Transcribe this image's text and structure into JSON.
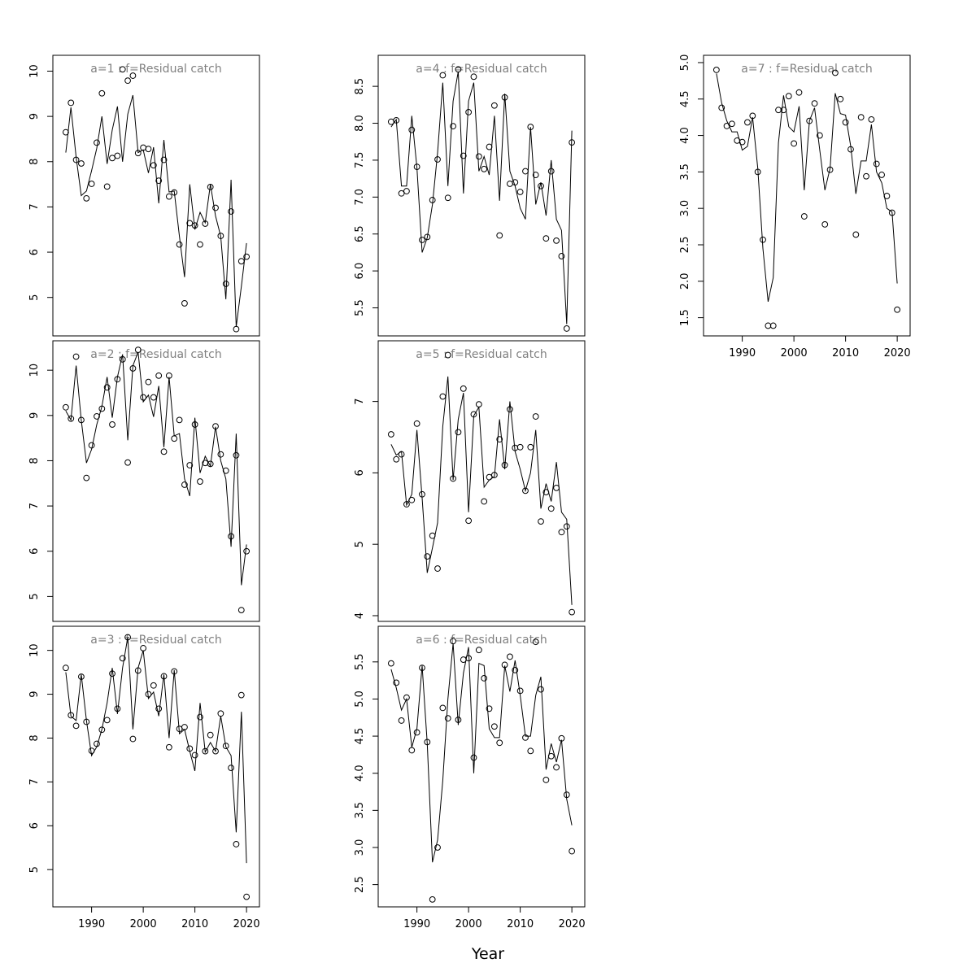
{
  "xlabel": "Year",
  "chart_data": [
    {
      "type": "line",
      "panel": 1,
      "title": "a=1  :  f=Residual catch",
      "xlim": [
        1982.5,
        2022.5
      ],
      "ylim": [
        4.15,
        10.35
      ],
      "yticks": [
        "5",
        "6",
        "7",
        "8",
        "9",
        "10"
      ],
      "xticks": [],
      "x": [
        1985,
        1986,
        1987,
        1988,
        1989,
        1990,
        1991,
        1992,
        1993,
        1994,
        1995,
        1996,
        1997,
        1998,
        1999,
        2000,
        2001,
        2002,
        2003,
        2004,
        2005,
        2006,
        2007,
        2008,
        2009,
        2010,
        2011,
        2012,
        2013,
        2014,
        2015,
        2016,
        2017,
        2018,
        2019,
        2020
      ],
      "series": [
        {
          "name": "",
          "role": "observed",
          "values": [
            8.65,
            9.3,
            8.04,
            7.96,
            7.19,
            7.51,
            8.42,
            9.51,
            7.45,
            8.08,
            8.13,
            10.04,
            9.79,
            9.9,
            8.19,
            8.31,
            8.28,
            7.92,
            7.58,
            8.04,
            7.23,
            7.32,
            6.17,
            4.87,
            6.64,
            6.59,
            6.17,
            6.63,
            7.44,
            6.98,
            6.36,
            5.3,
            6.9,
            4.3,
            5.8,
            5.9
          ]
        },
        {
          "name": "",
          "role": "fitted",
          "values": [
            8.2,
            9.2,
            8.1,
            7.25,
            7.35,
            7.8,
            8.3,
            9.0,
            7.95,
            8.7,
            9.22,
            8.0,
            9.05,
            9.47,
            8.2,
            8.26,
            7.75,
            8.32,
            7.08,
            8.48,
            7.33,
            7.35,
            6.35,
            5.45,
            7.5,
            6.5,
            6.88,
            6.65,
            7.5,
            6.8,
            6.35,
            4.96,
            7.6,
            4.35,
            5.25,
            6.2
          ]
        }
      ]
    },
    {
      "type": "line",
      "panel": 2,
      "title": "a=2  :  f=Residual catch",
      "xlim": [
        1982.5,
        2022.5
      ],
      "ylim": [
        4.45,
        10.65
      ],
      "yticks": [
        "5",
        "6",
        "7",
        "8",
        "9",
        "10"
      ],
      "xticks": [],
      "x": [
        1985,
        1986,
        1987,
        1988,
        1989,
        1990,
        1991,
        1992,
        1993,
        1994,
        1995,
        1996,
        1997,
        1998,
        1999,
        2000,
        2001,
        2002,
        2003,
        2004,
        2005,
        2006,
        2007,
        2008,
        2009,
        2010,
        2011,
        2012,
        2013,
        2014,
        2015,
        2016,
        2017,
        2018,
        2019,
        2020
      ],
      "series": [
        {
          "name": "",
          "role": "observed",
          "values": [
            9.18,
            8.93,
            10.3,
            8.9,
            7.62,
            8.34,
            8.98,
            9.15,
            9.62,
            8.8,
            9.8,
            10.24,
            7.96,
            10.04,
            10.45,
            9.4,
            9.74,
            9.4,
            9.88,
            8.2,
            9.88,
            8.49,
            8.9,
            7.47,
            7.9,
            8.8,
            7.54,
            7.95,
            7.93,
            8.76,
            8.14,
            7.78,
            6.33,
            8.12,
            4.7,
            6.0
          ]
        },
        {
          "name": "",
          "role": "fitted",
          "values": [
            9.1,
            8.9,
            10.1,
            8.9,
            7.95,
            8.25,
            8.8,
            9.2,
            9.85,
            8.95,
            9.85,
            10.35,
            8.45,
            10.1,
            10.4,
            9.3,
            9.45,
            8.97,
            9.65,
            8.3,
            9.85,
            8.55,
            8.6,
            7.6,
            7.22,
            8.95,
            7.73,
            8.1,
            7.88,
            8.75,
            8.0,
            7.6,
            6.1,
            8.6,
            5.25,
            6.15
          ]
        }
      ]
    },
    {
      "type": "line",
      "panel": 3,
      "title": "a=3  :  f=Residual catch",
      "xlim": [
        1982.5,
        2022.5
      ],
      "ylim": [
        4.15,
        10.55
      ],
      "yticks": [
        "5",
        "6",
        "7",
        "8",
        "9",
        "10"
      ],
      "xticks": [
        "1990",
        "2000",
        "2010",
        "2020"
      ],
      "x": [
        1985,
        1986,
        1987,
        1988,
        1989,
        1990,
        1991,
        1992,
        1993,
        1994,
        1995,
        1996,
        1997,
        1998,
        1999,
        2000,
        2001,
        2002,
        2003,
        2004,
        2005,
        2006,
        2007,
        2008,
        2009,
        2010,
        2011,
        2012,
        2013,
        2014,
        2015,
        2016,
        2017,
        2018,
        2019,
        2020
      ],
      "series": [
        {
          "name": "",
          "role": "observed",
          "values": [
            9.6,
            8.52,
            8.28,
            9.4,
            8.37,
            7.71,
            7.87,
            8.19,
            8.41,
            9.47,
            8.67,
            9.82,
            10.3,
            7.98,
            9.54,
            10.05,
            9.0,
            9.2,
            8.67,
            9.41,
            7.79,
            9.52,
            8.21,
            8.25,
            7.76,
            7.61,
            8.48,
            7.7,
            8.07,
            7.7,
            8.56,
            7.82,
            7.32,
            5.58,
            8.98,
            4.38
          ]
        },
        {
          "name": "",
          "role": "fitted",
          "values": [
            9.5,
            8.5,
            8.4,
            9.45,
            8.4,
            7.6,
            7.8,
            8.2,
            8.8,
            9.6,
            8.55,
            9.6,
            10.3,
            8.2,
            9.6,
            10.0,
            8.9,
            9.05,
            8.5,
            9.45,
            8.0,
            9.55,
            8.1,
            8.2,
            7.7,
            7.25,
            8.8,
            7.68,
            7.9,
            7.7,
            8.5,
            7.8,
            7.6,
            5.85,
            8.6,
            5.15
          ]
        }
      ]
    },
    {
      "type": "line",
      "panel": 4,
      "title": "a=4  :  f=Residual catch",
      "xlim": [
        1982.5,
        2022.5
      ],
      "ylim": [
        5.12,
        8.92
      ],
      "yticks": [
        "5.5",
        "6.0",
        "6.5",
        "7.0",
        "7.5",
        "8.0",
        "8.5"
      ],
      "xticks": [],
      "x": [
        1985,
        1986,
        1987,
        1988,
        1989,
        1990,
        1991,
        1992,
        1993,
        1994,
        1995,
        1996,
        1997,
        1998,
        1999,
        2000,
        2001,
        2002,
        2003,
        2004,
        2005,
        2006,
        2007,
        2008,
        2009,
        2010,
        2011,
        2012,
        2013,
        2014,
        2015,
        2016,
        2017,
        2018,
        2019,
        2020
      ],
      "series": [
        {
          "name": "",
          "role": "observed",
          "values": [
            8.02,
            8.04,
            7.05,
            7.08,
            7.91,
            7.41,
            6.42,
            6.46,
            6.96,
            7.51,
            8.65,
            6.99,
            7.96,
            8.73,
            7.56,
            8.15,
            8.63,
            7.55,
            7.38,
            7.68,
            8.24,
            6.48,
            8.35,
            7.18,
            7.2,
            7.07,
            7.35,
            7.95,
            7.3,
            7.15,
            6.44,
            7.35,
            6.41,
            6.2,
            5.22,
            7.74
          ]
        },
        {
          "name": "",
          "role": "fitted",
          "values": [
            7.95,
            8.05,
            7.15,
            7.15,
            8.1,
            7.4,
            6.25,
            6.45,
            6.9,
            7.6,
            8.55,
            7.15,
            8.3,
            8.7,
            7.05,
            8.3,
            8.55,
            7.35,
            7.55,
            7.3,
            8.1,
            6.95,
            8.4,
            7.35,
            7.15,
            6.85,
            6.7,
            7.95,
            6.9,
            7.2,
            6.75,
            7.5,
            6.7,
            6.55,
            5.28,
            7.9
          ]
        }
      ]
    },
    {
      "type": "line",
      "panel": 5,
      "title": "a=5  :  f=Residual catch",
      "xlim": [
        1982.5,
        2022.5
      ],
      "ylim": [
        3.92,
        7.85
      ],
      "yticks": [
        "4",
        "5",
        "6",
        "7"
      ],
      "xticks": [],
      "x": [
        1985,
        1986,
        1987,
        1988,
        1989,
        1990,
        1991,
        1992,
        1993,
        1994,
        1995,
        1996,
        1997,
        1998,
        1999,
        2000,
        2001,
        2002,
        2003,
        2004,
        2005,
        2006,
        2007,
        2008,
        2009,
        2010,
        2011,
        2012,
        2013,
        2014,
        2015,
        2016,
        2017,
        2018,
        2019,
        2020
      ],
      "series": [
        {
          "name": "",
          "role": "observed",
          "values": [
            6.54,
            6.19,
            6.26,
            5.56,
            5.62,
            6.69,
            5.7,
            4.83,
            5.12,
            4.66,
            7.07,
            7.65,
            5.92,
            6.57,
            7.18,
            5.33,
            6.82,
            6.96,
            5.6,
            5.94,
            5.97,
            6.47,
            6.11,
            6.89,
            6.35,
            6.36,
            5.75,
            6.36,
            6.79,
            5.32,
            5.73,
            5.5,
            5.79,
            5.17,
            5.25,
            4.05
          ]
        },
        {
          "name": "",
          "role": "fitted",
          "values": [
            6.4,
            6.25,
            6.3,
            5.55,
            5.7,
            6.6,
            5.65,
            4.6,
            4.95,
            5.3,
            6.65,
            7.35,
            5.9,
            6.75,
            7.12,
            5.45,
            6.8,
            6.92,
            5.8,
            5.9,
            5.95,
            6.75,
            6.05,
            7.0,
            6.3,
            6.05,
            5.75,
            6.0,
            6.6,
            5.5,
            5.85,
            5.6,
            6.15,
            5.45,
            5.35,
            4.15
          ]
        }
      ]
    },
    {
      "type": "line",
      "panel": 6,
      "title": "a=6  :  f=Residual catch",
      "xlim": [
        1982.5,
        2022.5
      ],
      "ylim": [
        2.2,
        5.98
      ],
      "yticks": [
        "2.5",
        "3.0",
        "3.5",
        "4.0",
        "4.5",
        "5.0",
        "5.5"
      ],
      "xticks": [
        "1990",
        "2000",
        "2010",
        "2020"
      ],
      "x": [
        1985,
        1986,
        1987,
        1988,
        1989,
        1990,
        1991,
        1992,
        1993,
        1994,
        1995,
        1996,
        1997,
        1998,
        1999,
        2000,
        2001,
        2002,
        2003,
        2004,
        2005,
        2006,
        2007,
        2008,
        2009,
        2010,
        2011,
        2012,
        2013,
        2014,
        2015,
        2016,
        2017,
        2018,
        2019,
        2020
      ],
      "series": [
        {
          "name": "",
          "role": "observed",
          "values": [
            5.48,
            5.22,
            4.71,
            5.02,
            4.31,
            4.55,
            5.42,
            4.42,
            2.3,
            3.0,
            4.88,
            4.74,
            5.78,
            4.72,
            5.53,
            5.55,
            4.21,
            5.66,
            5.28,
            4.87,
            4.63,
            4.41,
            5.46,
            5.57,
            5.39,
            5.11,
            4.48,
            4.3,
            5.77,
            5.13,
            3.91,
            4.23,
            4.08,
            4.47,
            3.71,
            2.95
          ]
        },
        {
          "name": "",
          "role": "fitted",
          "values": [
            5.4,
            5.15,
            4.85,
            5.0,
            4.35,
            4.6,
            5.45,
            4.4,
            2.8,
            3.1,
            3.9,
            5.0,
            5.75,
            4.65,
            5.35,
            5.7,
            4.0,
            5.48,
            5.45,
            4.6,
            4.48,
            4.48,
            5.45,
            5.1,
            5.52,
            5.05,
            4.5,
            4.5,
            5.05,
            5.3,
            4.05,
            4.4,
            4.15,
            4.45,
            3.65,
            3.3
          ]
        }
      ]
    },
    {
      "type": "line",
      "panel": 7,
      "title": "a=7  :  f=Residual catch",
      "xlim": [
        1982.5,
        2022.5
      ],
      "ylim": [
        1.25,
        5.1
      ],
      "yticks": [
        "1.5",
        "2.0",
        "2.5",
        "3.0",
        "3.5",
        "4.0",
        "4.5",
        "5.0"
      ],
      "xticks": [
        "1990",
        "2000",
        "2010",
        "2020"
      ],
      "x": [
        1985,
        1986,
        1987,
        1988,
        1989,
        1990,
        1991,
        1992,
        1993,
        1994,
        1995,
        1996,
        1997,
        1998,
        1999,
        2000,
        2001,
        2002,
        2003,
        2004,
        2005,
        2006,
        2007,
        2008,
        2009,
        2010,
        2011,
        2012,
        2013,
        2014,
        2015,
        2016,
        2017,
        2018,
        2019,
        2020
      ],
      "series": [
        {
          "name": "",
          "role": "observed",
          "values": [
            4.9,
            4.38,
            4.13,
            4.16,
            3.93,
            3.91,
            4.18,
            4.27,
            3.5,
            2.57,
            1.39,
            1.39,
            4.35,
            4.35,
            4.54,
            3.89,
            4.59,
            2.89,
            4.2,
            4.44,
            4.0,
            2.78,
            3.53,
            4.86,
            4.5,
            4.18,
            3.81,
            2.64,
            4.25,
            3.44,
            4.22,
            3.61,
            3.46,
            3.17,
            2.94,
            1.61
          ]
        },
        {
          "name": "",
          "role": "fitted",
          "values": [
            4.85,
            4.45,
            4.2,
            4.05,
            4.05,
            3.8,
            3.85,
            4.25,
            3.55,
            2.45,
            1.72,
            2.05,
            3.9,
            4.55,
            4.12,
            4.05,
            4.4,
            3.25,
            4.2,
            4.38,
            3.8,
            3.25,
            3.55,
            4.58,
            4.3,
            4.28,
            3.85,
            3.2,
            3.65,
            3.65,
            4.15,
            3.5,
            3.35,
            3.0,
            2.95,
            1.97
          ]
        }
      ]
    }
  ]
}
